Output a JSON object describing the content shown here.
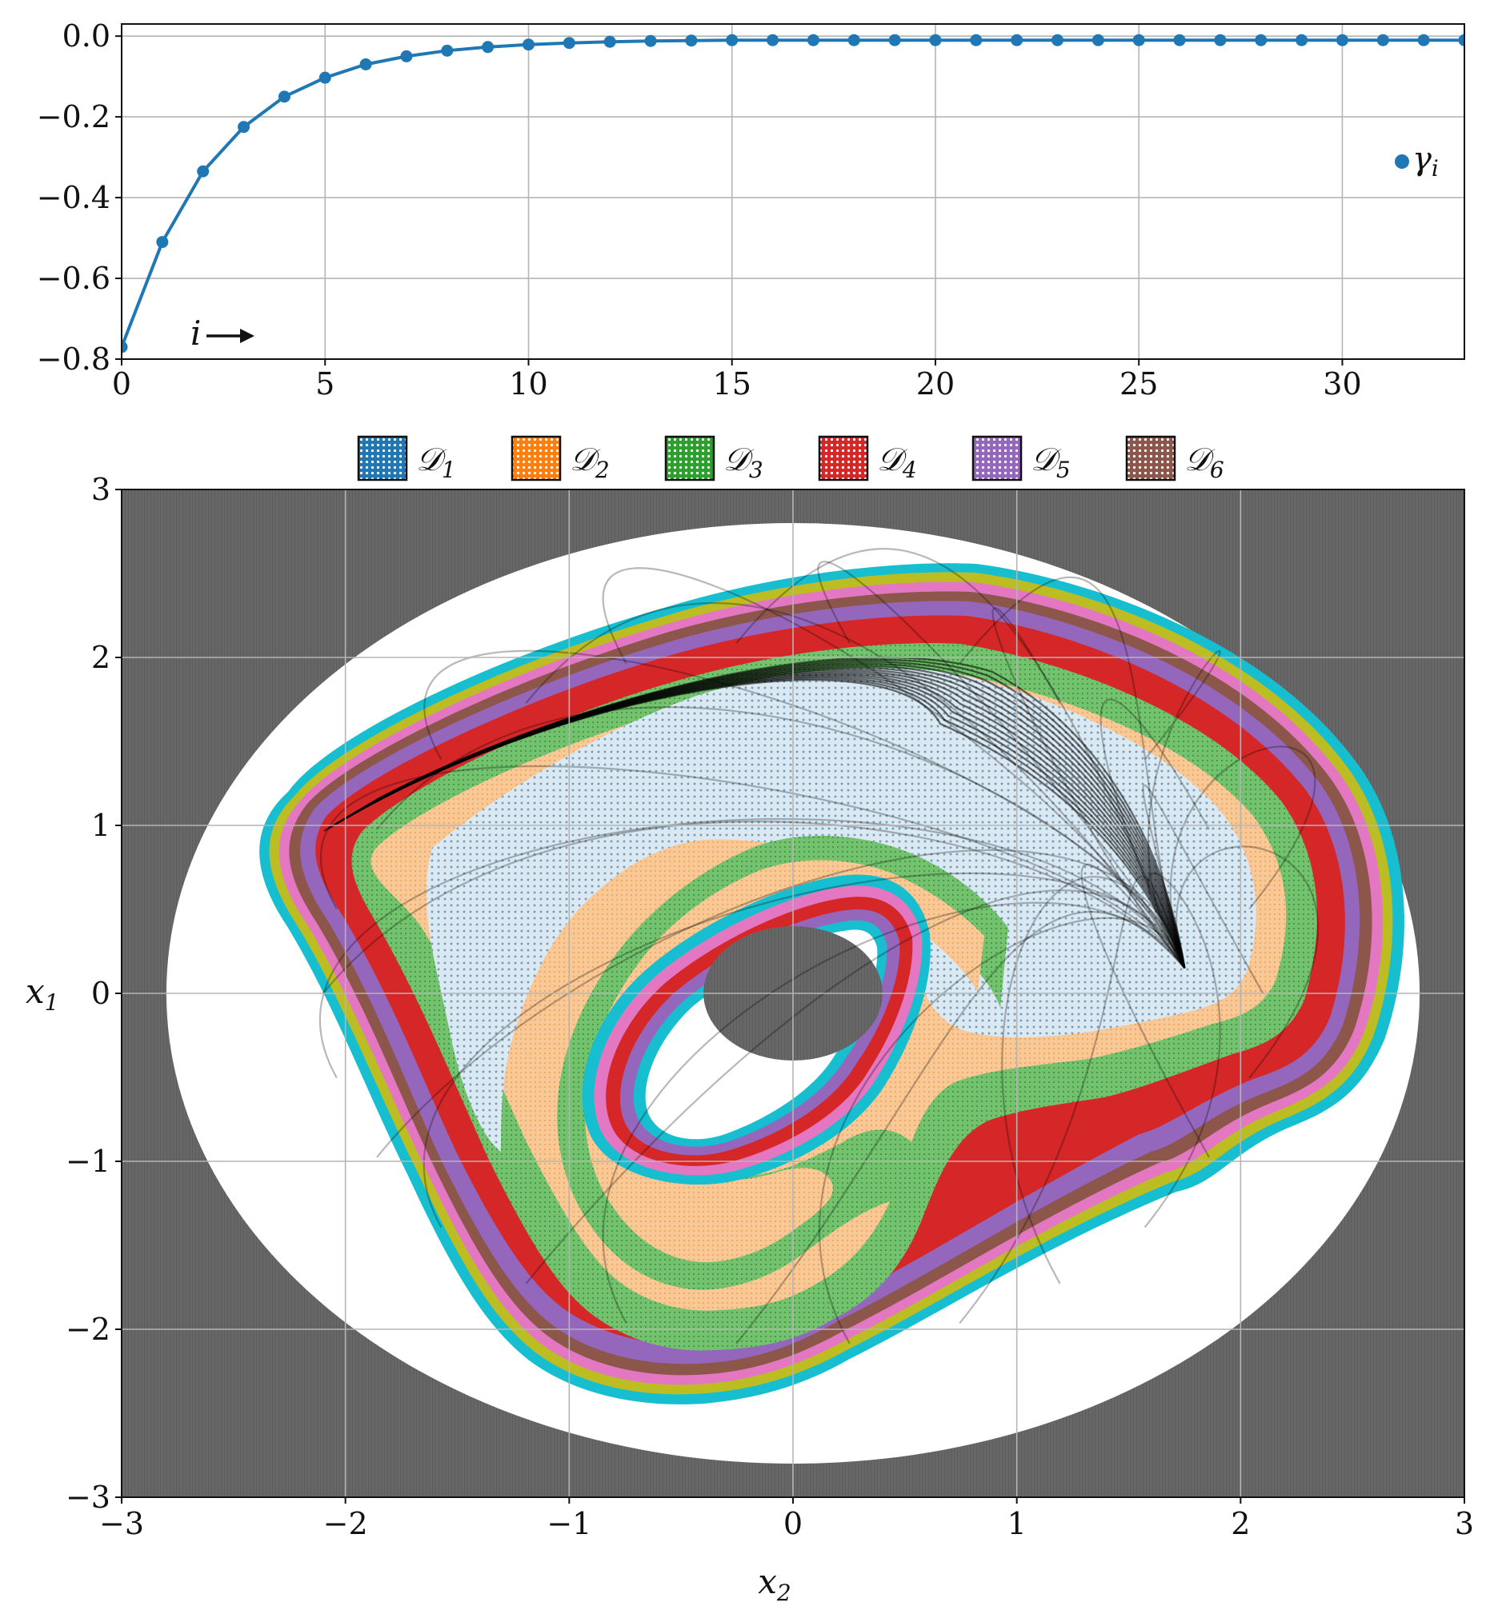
{
  "chart_data": [
    {
      "type": "line",
      "name": "gamma-sequence",
      "x": [
        0,
        1,
        2,
        3,
        4,
        5,
        6,
        7,
        8,
        9,
        10,
        11,
        12,
        13,
        14,
        15,
        16,
        17,
        18,
        19,
        20,
        21,
        22,
        23,
        24,
        25,
        26,
        27,
        28,
        29,
        30,
        31,
        32,
        33
      ],
      "series": [
        {
          "name": "γ_i",
          "color": "#1f77b4",
          "values": [
            -0.77,
            -0.51,
            -0.335,
            -0.225,
            -0.15,
            -0.103,
            -0.07,
            -0.05,
            -0.036,
            -0.027,
            -0.021,
            -0.017,
            -0.014,
            -0.012,
            -0.011,
            -0.01,
            -0.01,
            -0.01,
            -0.01,
            -0.01,
            -0.01,
            -0.01,
            -0.01,
            -0.01,
            -0.01,
            -0.01,
            -0.01,
            -0.01,
            -0.01,
            -0.01,
            -0.01,
            -0.01,
            -0.01,
            -0.01
          ]
        }
      ],
      "xlim": [
        0,
        33
      ],
      "ylim": [
        -0.8,
        0.03
      ],
      "xticks": [
        "0",
        "5",
        "10",
        "15",
        "20",
        "25",
        "30"
      ],
      "xtick_values": [
        0,
        5,
        10,
        15,
        20,
        25,
        30
      ],
      "yticks": [
        "0.0",
        "−0.2",
        "−0.4",
        "−0.6",
        "−0.8"
      ],
      "ytick_values": [
        0.0,
        -0.2,
        -0.4,
        -0.6,
        -0.8
      ],
      "grid": true,
      "legend": {
        "label": "γ",
        "sub": "i",
        "placement": "right"
      },
      "annotation": {
        "text": "i",
        "arrow": "→",
        "x": 2.0,
        "y": -0.74
      }
    },
    {
      "type": "region-map",
      "name": "domain-of-attraction",
      "xlabel": {
        "base": "x",
        "sub": "2"
      },
      "ylabel": {
        "base": "x",
        "sub": "1"
      },
      "xlim": [
        -3,
        3
      ],
      "ylim": [
        -3,
        3
      ],
      "xticks": [
        "−3",
        "−2",
        "−1",
        "0",
        "1",
        "2",
        "3"
      ],
      "xtick_values": [
        -3,
        -2,
        -1,
        0,
        1,
        2,
        3
      ],
      "yticks": [
        "3",
        "2",
        "1",
        "0",
        "−1",
        "−2",
        "−3"
      ],
      "ytick_values": [
        3,
        2,
        1,
        0,
        -1,
        -2,
        -3
      ],
      "grid": true,
      "legend": [
        {
          "label": "𝒟",
          "sub": "1",
          "color": "#1f77b4"
        },
        {
          "label": "𝒟",
          "sub": "2",
          "color": "#ff7f0e"
        },
        {
          "label": "𝒟",
          "sub": "3",
          "color": "#2ca02c"
        },
        {
          "label": "𝒟",
          "sub": "4",
          "color": "#d62728"
        },
        {
          "label": "𝒟",
          "sub": "5",
          "color": "#9467bd"
        },
        {
          "label": "𝒟",
          "sub": "6",
          "color": "#8c564b"
        }
      ],
      "outer_boundary_radii": {
        "x2": 2.8,
        "x1": 2.8
      },
      "inner_excluded_radii": {
        "x2": 0.4,
        "x1": 0.4
      },
      "equilibrium": {
        "x2": 1.75,
        "x1": 0.15
      },
      "colors": {
        "excluded": "#666666",
        "d1_fill": "#c7dce8",
        "d2_fill": "#f6c28e",
        "d3_fill": "#6fc36c",
        "d4_fill": "#d62728",
        "d5_fill": "#9467bd",
        "d6_fill": "#8c564b",
        "pink": "#e377c2",
        "olive": "#bcbd22",
        "cyan": "#17becf",
        "trajectory": "#000000"
      }
    }
  ]
}
